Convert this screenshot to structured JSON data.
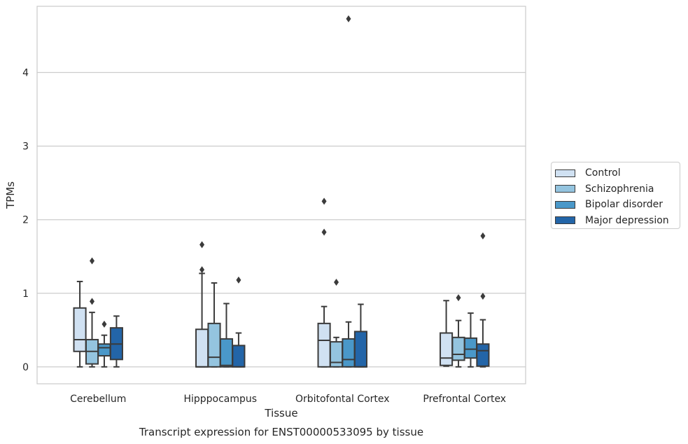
{
  "chart_data": {
    "type": "box",
    "title": "Transcript expression for ENST00000533095 by tissue",
    "xlabel": "Tissue",
    "ylabel": "TPMs",
    "ylim": [
      -0.23,
      4.9
    ],
    "yticks": [
      0,
      1,
      2,
      3,
      4
    ],
    "grid": true,
    "legend_position": "right",
    "categories": [
      "Cerebellum",
      "Hipppocampus",
      "Orbitofontal Cortex",
      "Prefrontal Cortex"
    ],
    "series": [
      {
        "name": "Control",
        "color": "#d0e1f2",
        "boxes": [
          {
            "whislo": 0.0,
            "q1": 0.21,
            "med": 0.37,
            "q3": 0.8,
            "whishi": 1.16,
            "fliers": []
          },
          {
            "whislo": 0.0,
            "q1": 0.0,
            "med": 0.0,
            "q3": 0.51,
            "whishi": 1.27,
            "fliers": [
              1.32,
              1.66
            ]
          },
          {
            "whislo": 0.0,
            "q1": 0.0,
            "med": 0.36,
            "q3": 0.59,
            "whishi": 0.82,
            "fliers": [
              1.83,
              2.25
            ]
          },
          {
            "whislo": 0.01,
            "q1": 0.02,
            "med": 0.12,
            "q3": 0.46,
            "whishi": 0.9,
            "fliers": []
          }
        ]
      },
      {
        "name": "Schizophrenia",
        "color": "#94c4df",
        "boxes": [
          {
            "whislo": 0.0,
            "q1": 0.04,
            "med": 0.21,
            "q3": 0.37,
            "whishi": 0.74,
            "fliers": [
              0.89,
              1.44
            ]
          },
          {
            "whislo": 0.0,
            "q1": 0.0,
            "med": 0.13,
            "q3": 0.59,
            "whishi": 1.14,
            "fliers": []
          },
          {
            "whislo": 0.0,
            "q1": 0.0,
            "med": 0.06,
            "q3": 0.34,
            "whishi": 0.4,
            "fliers": [
              1.15
            ]
          },
          {
            "whislo": 0.0,
            "q1": 0.09,
            "med": 0.17,
            "q3": 0.4,
            "whishi": 0.63,
            "fliers": [
              0.94
            ]
          }
        ]
      },
      {
        "name": "Bipolar disorder",
        "color": "#4a98c9",
        "boxes": [
          {
            "whislo": 0.0,
            "q1": 0.15,
            "med": 0.26,
            "q3": 0.31,
            "whishi": 0.43,
            "fliers": [
              0.58
            ]
          },
          {
            "whislo": 0.0,
            "q1": 0.0,
            "med": 0.02,
            "q3": 0.38,
            "whishi": 0.86,
            "fliers": []
          },
          {
            "whislo": 0.0,
            "q1": 0.0,
            "med": 0.1,
            "q3": 0.38,
            "whishi": 0.61,
            "fliers": [
              4.73
            ]
          },
          {
            "whislo": 0.0,
            "q1": 0.12,
            "med": 0.24,
            "q3": 0.39,
            "whishi": 0.73,
            "fliers": []
          }
        ]
      },
      {
        "name": "Major depression",
        "color": "#2365a8",
        "boxes": [
          {
            "whislo": 0.0,
            "q1": 0.1,
            "med": 0.31,
            "q3": 0.53,
            "whishi": 0.69,
            "fliers": []
          },
          {
            "whislo": 0.0,
            "q1": 0.0,
            "med": 0.0,
            "q3": 0.29,
            "whishi": 0.46,
            "fliers": [
              1.18
            ]
          },
          {
            "whislo": 0.0,
            "q1": 0.0,
            "med": 0.0,
            "q3": 0.48,
            "whishi": 0.85,
            "fliers": []
          },
          {
            "whislo": 0.0,
            "q1": 0.01,
            "med": 0.22,
            "q3": 0.31,
            "whishi": 0.64,
            "fliers": [
              0.96,
              1.78
            ]
          }
        ]
      }
    ]
  }
}
